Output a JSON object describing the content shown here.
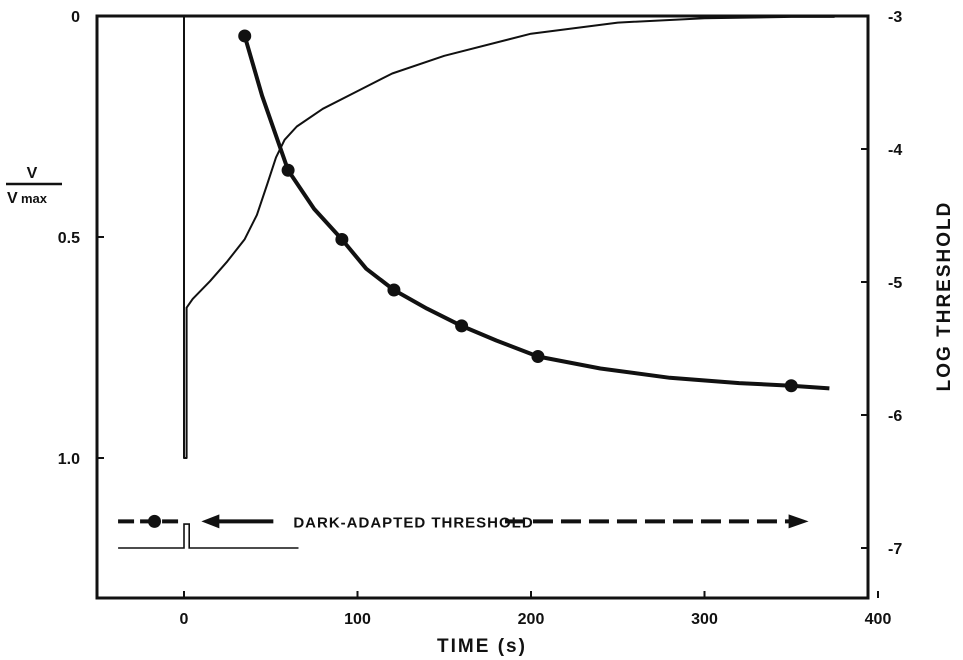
{
  "chart_data": {
    "type": "line",
    "xlabel": "TIME (s)",
    "ylabel_left": {
      "numerator": "V",
      "denominator": "V",
      "denominator_sub": "max"
    },
    "ylabel_right": "LOG THRESHOLD",
    "xlim": [
      -50,
      400
    ],
    "ylim_left": [
      1.25,
      0
    ],
    "ylim_right": [
      -7.3,
      -3
    ],
    "x_ticks": [
      0,
      100,
      200,
      300,
      400
    ],
    "y_left_ticks": [
      0,
      0.5,
      1.0
    ],
    "y_left_tick_labels": [
      "0",
      "0.5",
      "1.0"
    ],
    "y_right_ticks": [
      -3,
      -4,
      -5,
      -6,
      -7
    ],
    "y_right_tick_labels": [
      "-3",
      "-4",
      "-5",
      "-6",
      "-7"
    ],
    "grid": false,
    "series": [
      {
        "role": "response",
        "axis": "left",
        "style": "thin-solid",
        "points": [
          [
            -38,
            0
          ],
          [
            0,
            0
          ],
          [
            0,
            1.0
          ],
          [
            1.5,
            1.0
          ],
          [
            1.5,
            0.66
          ],
          [
            5,
            0.64
          ],
          [
            15,
            0.6
          ],
          [
            25,
            0.555
          ],
          [
            35,
            0.505
          ],
          [
            42,
            0.45
          ],
          [
            48,
            0.38
          ],
          [
            53,
            0.32
          ],
          [
            58,
            0.28
          ],
          [
            65,
            0.25
          ],
          [
            80,
            0.21
          ],
          [
            100,
            0.17
          ],
          [
            120,
            0.13
          ],
          [
            150,
            0.09
          ],
          [
            200,
            0.04
          ],
          [
            250,
            0.015
          ],
          [
            300,
            0.005
          ],
          [
            350,
            0.002
          ],
          [
            375,
            0.002
          ]
        ]
      },
      {
        "role": "dark-adapted-baseline",
        "axis": "left",
        "style": "dashed",
        "points": [
          [
            0,
            0
          ],
          [
            250,
            0
          ]
        ]
      },
      {
        "role": "threshold",
        "axis": "right",
        "style": "thick-solid",
        "points": [
          [
            35,
            -3.15
          ],
          [
            45,
            -3.6
          ],
          [
            60,
            -4.16
          ],
          [
            75,
            -4.45
          ],
          [
            91,
            -4.68
          ],
          [
            105,
            -4.9
          ],
          [
            121,
            -5.06
          ],
          [
            140,
            -5.2
          ],
          [
            160,
            -5.33
          ],
          [
            180,
            -5.44
          ],
          [
            204,
            -5.56
          ],
          [
            240,
            -5.65
          ],
          [
            280,
            -5.72
          ],
          [
            320,
            -5.76
          ],
          [
            350,
            -5.78
          ],
          [
            372,
            -5.8
          ]
        ]
      }
    ],
    "threshold_markers": [
      [
        35,
        -3.15
      ],
      [
        60,
        -4.16
      ],
      [
        91,
        -4.68
      ],
      [
        121,
        -5.06
      ],
      [
        160,
        -5.33
      ],
      [
        204,
        -5.56
      ],
      [
        350,
        -5.78
      ]
    ],
    "legend": {
      "label": "DARK-ADAPTED THRESHOLD",
      "marker_x": -17,
      "line_x_range": [
        -38,
        360
      ],
      "y_right": -6.8
    },
    "stimulus_trace": {
      "axis": "right",
      "baseline": -7.0,
      "peak": -6.82,
      "x_start": -38,
      "x_end": 66,
      "pulse": [
        0,
        3
      ]
    }
  }
}
